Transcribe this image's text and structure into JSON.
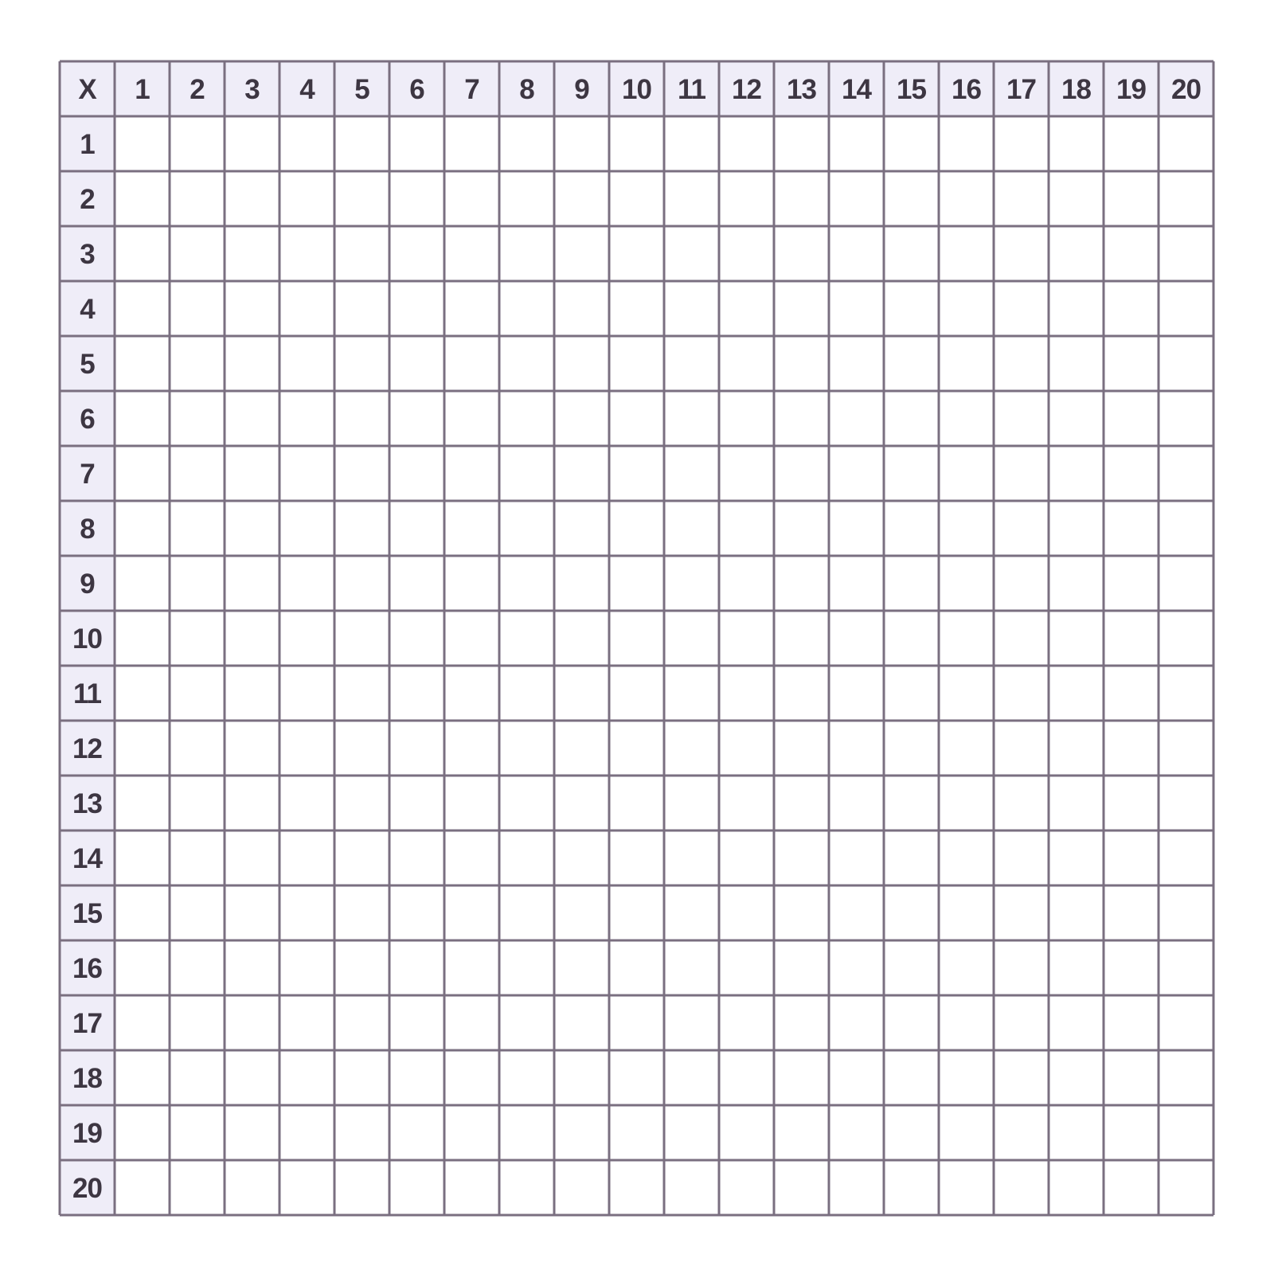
{
  "table": {
    "corner": "X",
    "columns": [
      1,
      2,
      3,
      4,
      5,
      6,
      7,
      8,
      9,
      10,
      11,
      12,
      13,
      14,
      15,
      16,
      17,
      18,
      19,
      20
    ],
    "rows": [
      1,
      2,
      3,
      4,
      5,
      6,
      7,
      8,
      9,
      10,
      11,
      12,
      13,
      14,
      15,
      16,
      17,
      18,
      19,
      20
    ]
  }
}
